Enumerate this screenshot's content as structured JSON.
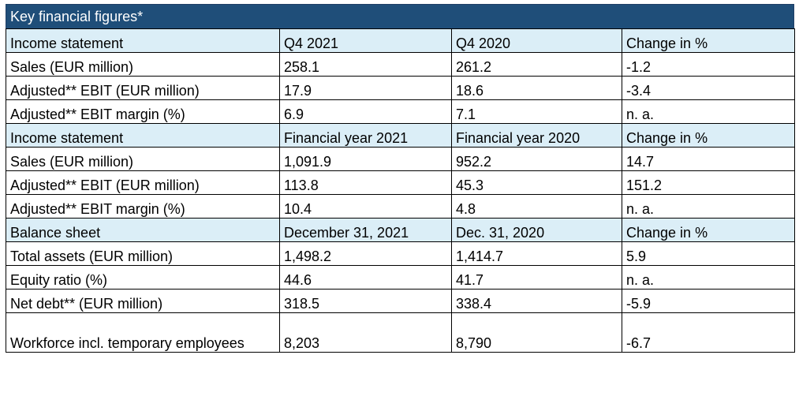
{
  "title": "Key financial figures*",
  "sections": [
    {
      "header": [
        "Income statement",
        "Q4 2021",
        "Q4 2020",
        "Change in %"
      ],
      "rows": [
        [
          "Sales (EUR million)",
          "258.1",
          "261.2",
          "-1.2"
        ],
        [
          "Adjusted** EBIT (EUR million)",
          "17.9",
          "18.6",
          "-3.4"
        ],
        [
          "Adjusted** EBIT margin (%)",
          "6.9",
          "7.1",
          "n. a."
        ]
      ]
    },
    {
      "header": [
        "Income statement",
        "Financial year 2021",
        "Financial year 2020",
        "Change in %"
      ],
      "rows": [
        [
          "Sales (EUR million)",
          "1,091.9",
          "952.2",
          "14.7"
        ],
        [
          "Adjusted** EBIT (EUR million)",
          "113.8",
          "45.3",
          "151.2"
        ],
        [
          "Adjusted** EBIT margin (%)",
          "10.4",
          "4.8",
          "n. a."
        ]
      ]
    },
    {
      "header": [
        "Balance sheet",
        "December 31, 2021",
        "Dec. 31, 2020",
        "Change in %"
      ],
      "rows": [
        [
          "Total assets (EUR million)",
          "1,498.2",
          "1,414.7",
          "5.9"
        ],
        [
          "Equity ratio (%)",
          "44.6",
          "41.7",
          "n. a."
        ],
        [
          "Net debt** (EUR million)",
          "318.5",
          "338.4",
          "-5.9"
        ],
        [
          "Workforce incl. temporary employees",
          "8,203",
          "8,790",
          "-6.7"
        ]
      ]
    }
  ],
  "colors": {
    "title_bg": "#1f4e79",
    "header_bg": "#dbeef7"
  }
}
